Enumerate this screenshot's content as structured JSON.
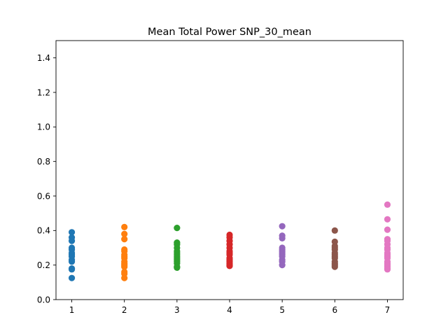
{
  "chart_data": {
    "type": "scatter",
    "title": "Mean Total Power SNP_30_mean",
    "xlabel": "",
    "ylabel": "",
    "xlim": [
      0.7,
      7.3
    ],
    "ylim": [
      0.0,
      1.5
    ],
    "x_ticks": [
      1,
      2,
      3,
      4,
      5,
      6,
      7
    ],
    "y_ticks": [
      0.0,
      0.2,
      0.4,
      0.6,
      0.8,
      1.0,
      1.2,
      1.4
    ],
    "grid": false,
    "legend": "none",
    "series": [
      {
        "x": 1,
        "color": "#1f77b4",
        "values": [
          0.39,
          0.36,
          0.34,
          0.3,
          0.29,
          0.27,
          0.26,
          0.25,
          0.23,
          0.22,
          0.18,
          0.175,
          0.125
        ]
      },
      {
        "x": 2,
        "color": "#ff7f0e",
        "values": [
          0.42,
          0.38,
          0.35,
          0.29,
          0.28,
          0.26,
          0.25,
          0.24,
          0.22,
          0.21,
          0.2,
          0.19,
          0.16,
          0.15,
          0.125
        ]
      },
      {
        "x": 3,
        "color": "#2ca02c",
        "values": [
          0.415,
          0.33,
          0.32,
          0.3,
          0.28,
          0.27,
          0.26,
          0.25,
          0.24,
          0.23,
          0.22,
          0.21,
          0.19,
          0.185
        ]
      },
      {
        "x": 4,
        "color": "#d62728",
        "values": [
          0.375,
          0.36,
          0.34,
          0.32,
          0.3,
          0.28,
          0.27,
          0.26,
          0.24,
          0.23,
          0.22,
          0.21,
          0.2,
          0.195
        ]
      },
      {
        "x": 5,
        "color": "#9467bd",
        "values": [
          0.425,
          0.37,
          0.355,
          0.3,
          0.29,
          0.28,
          0.27,
          0.26,
          0.25,
          0.23,
          0.22,
          0.2
        ]
      },
      {
        "x": 6,
        "color": "#8c564b",
        "values": [
          0.4,
          0.335,
          0.31,
          0.3,
          0.29,
          0.27,
          0.26,
          0.25,
          0.24,
          0.22,
          0.21,
          0.2,
          0.19
        ]
      },
      {
        "x": 7,
        "color": "#e377c2",
        "values": [
          0.55,
          0.465,
          0.405,
          0.35,
          0.34,
          0.32,
          0.3,
          0.29,
          0.27,
          0.26,
          0.25,
          0.24,
          0.22,
          0.21,
          0.2,
          0.19,
          0.18,
          0.175
        ]
      }
    ]
  }
}
